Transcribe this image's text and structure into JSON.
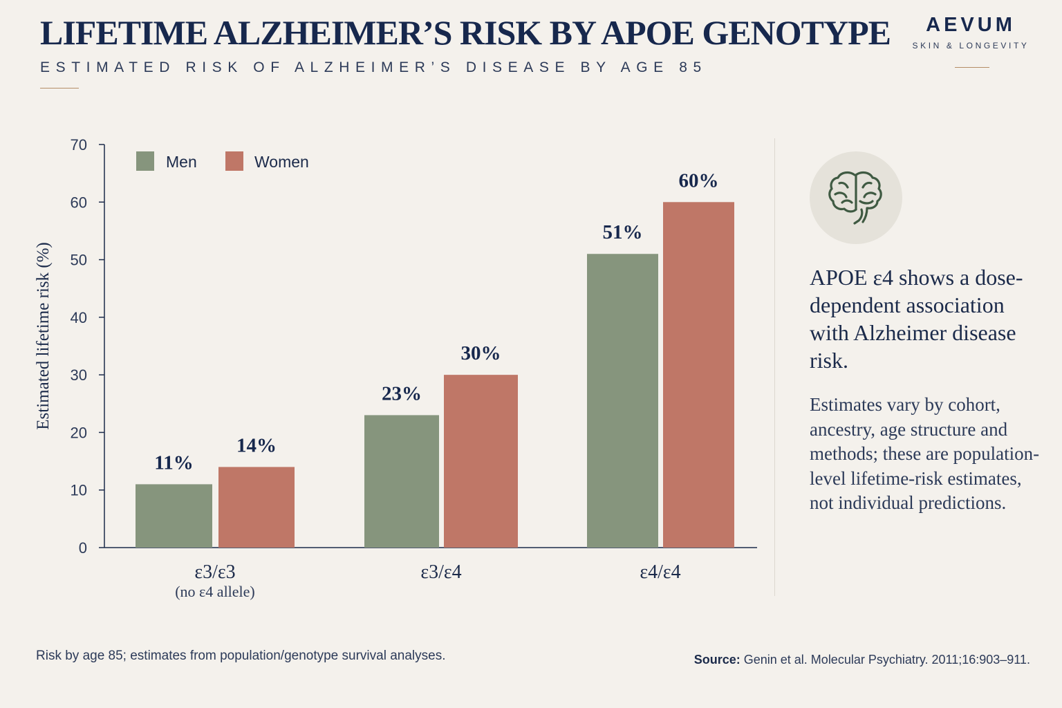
{
  "header": {
    "title": "LIFETIME ALZHEIMER’S RISK BY APOE GENOTYPE",
    "subtitle": "ESTIMATED RISK OF ALZHEIMER’S DISEASE BY AGE 85"
  },
  "brand": {
    "name": "AEVUM",
    "tagline": "SKIN & LONGEVITY"
  },
  "chart_data": {
    "type": "bar",
    "title": "LIFETIME ALZHEIMER’S RISK BY APOE GENOTYPE",
    "subtitle": "ESTIMATED RISK OF ALZHEIMER’S DISEASE BY AGE 85",
    "ylabel": "Estimated lifetime risk (%)",
    "xlabel": "",
    "ylim": [
      0,
      70
    ],
    "yticks": [
      0,
      10,
      20,
      30,
      40,
      50,
      60,
      70
    ],
    "categories": [
      "ε3/ε3",
      "ε3/ε4",
      "ε4/ε4"
    ],
    "category_sublabels": [
      "(no ε4 allele)",
      "",
      ""
    ],
    "series": [
      {
        "name": "Men",
        "color": "#86957d",
        "values": [
          11,
          23,
          51
        ],
        "labels": [
          "11%",
          "23%",
          "51%"
        ]
      },
      {
        "name": "Women",
        "color": "#bf7767",
        "values": [
          14,
          30,
          60
        ],
        "labels": [
          "14%",
          "30%",
          "60%"
        ]
      }
    ],
    "legend": "top-left",
    "grid": false
  },
  "sidebar": {
    "icon": "brain-icon",
    "insight": "APOE ε4 shows a dose-dependent association with Alzheimer disease risk.",
    "note": "Estimates vary by cohort, ancestry, age structure and methods; these are population-level lifetime-risk estimates, not individual predictions."
  },
  "footer": {
    "footnote": "Risk by age 85; estimates from population/genotype survival analyses.",
    "source_label": "Source:",
    "source_text": "Genin et al. Molecular Psychiatry. 2011;16:903–911."
  }
}
